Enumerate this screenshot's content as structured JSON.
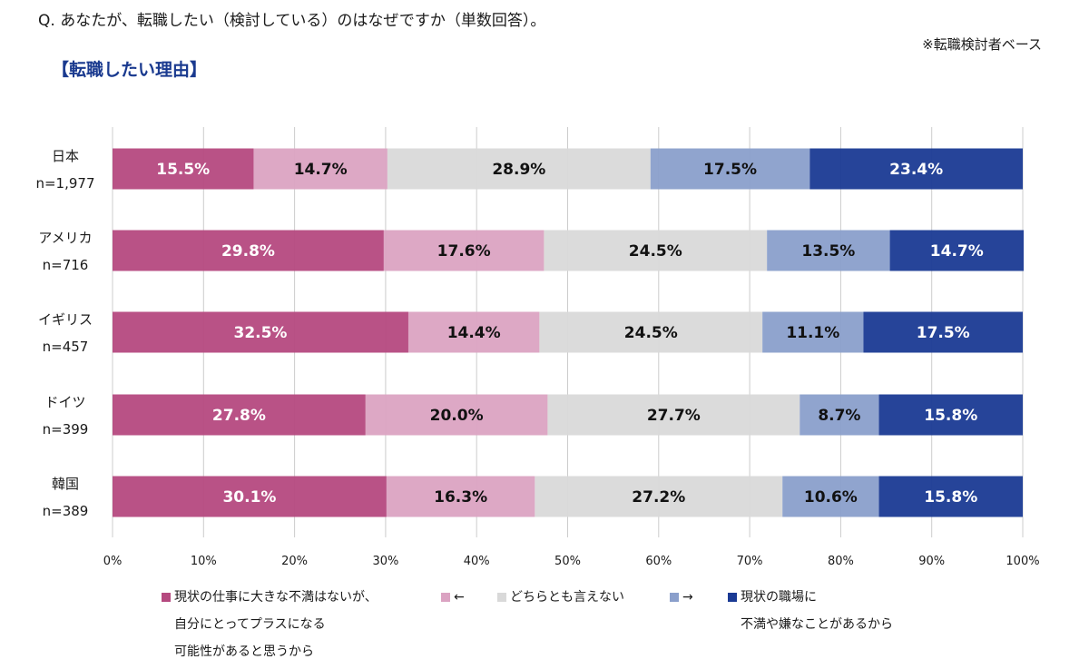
{
  "header": {
    "question": "Q. あなたが、転職したい（検討している）のはなぜですか（単数回答）。",
    "base_note": "※転職検討者ベース",
    "section_title": "【転職したい理由】"
  },
  "chart_data": {
    "type": "bar",
    "orientation": "horizontal",
    "stacked": true,
    "title": "【転職したい理由】",
    "xlabel": "",
    "ylabel": "",
    "xlim": [
      0,
      100
    ],
    "x_ticks": [
      "0%",
      "10%",
      "20%",
      "30%",
      "40%",
      "50%",
      "60%",
      "70%",
      "80%",
      "90%",
      "100%"
    ],
    "grid": true,
    "legend_position": "bottom",
    "categories": [
      {
        "name": "日本",
        "n": "n=1,977"
      },
      {
        "name": "アメリカ",
        "n": "n=716"
      },
      {
        "name": "イギリス",
        "n": "n=457"
      },
      {
        "name": "ドイツ",
        "n": "n=399"
      },
      {
        "name": "韓国",
        "n": "n=389"
      }
    ],
    "series": [
      {
        "name": "現状の仕事に大きな不満はないが、自分にとってプラスになる可能性があると思うから",
        "legend_lines": [
          "現状の仕事に大きな不満はないが、",
          "自分にとってプラスになる",
          "可能性があると思うから"
        ],
        "color": "#b5497f",
        "label_color": "#ffffff",
        "values": [
          15.5,
          29.8,
          32.5,
          27.8,
          30.1
        ]
      },
      {
        "name": "←",
        "legend_lines": [
          "←"
        ],
        "color": "#dba3c2",
        "label_color": "#111111",
        "values": [
          14.7,
          17.6,
          14.4,
          20.0,
          16.3
        ]
      },
      {
        "name": "どちらとも言えない",
        "legend_lines": [
          "どちらとも言えない"
        ],
        "color": "#d9d9d9",
        "label_color": "#111111",
        "values": [
          28.9,
          24.5,
          24.5,
          27.7,
          27.2
        ]
      },
      {
        "name": "→",
        "legend_lines": [
          "→"
        ],
        "color": "#8a9fcb",
        "label_color": "#111111",
        "values": [
          17.5,
          13.5,
          11.1,
          8.7,
          10.6
        ]
      },
      {
        "name": "現状の職場に不満や嫌なことがあるから",
        "legend_lines": [
          "現状の職場に",
          "不満や嫌なことがあるから"
        ],
        "color": "#1a3a94",
        "label_color": "#ffffff",
        "values": [
          23.4,
          14.7,
          17.5,
          15.8,
          15.8
        ]
      }
    ]
  }
}
